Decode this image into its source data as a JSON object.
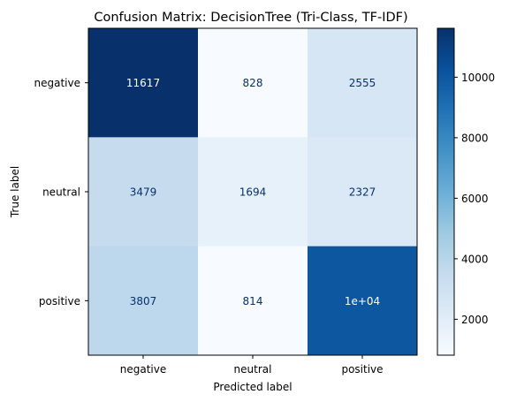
{
  "chart_data": {
    "type": "heatmap",
    "title": "Confusion Matrix: DecisionTree (Tri-Class, TF-IDF)",
    "xlabel": "Predicted label",
    "ylabel": "True label",
    "x_categories": [
      "negative",
      "neutral",
      "positive"
    ],
    "y_categories": [
      "negative",
      "neutral",
      "positive"
    ],
    "values": [
      [
        11617,
        828,
        2555
      ],
      [
        3479,
        1694,
        2327
      ],
      [
        3807,
        814,
        10000
      ]
    ],
    "cell_labels": [
      [
        "11617",
        "828",
        "2555"
      ],
      [
        "3479",
        "1694",
        "2327"
      ],
      [
        "3807",
        "814",
        "1e+04"
      ]
    ],
    "colormap": "Blues",
    "colorbar": {
      "min": 814,
      "max": 11617,
      "ticks": [
        2000,
        4000,
        6000,
        8000,
        10000
      ],
      "tick_labels": [
        "2000",
        "4000",
        "6000",
        "8000",
        "10000"
      ]
    },
    "grid": false,
    "text_color_light": "#ffffff",
    "text_color_dark": "#08306b"
  }
}
